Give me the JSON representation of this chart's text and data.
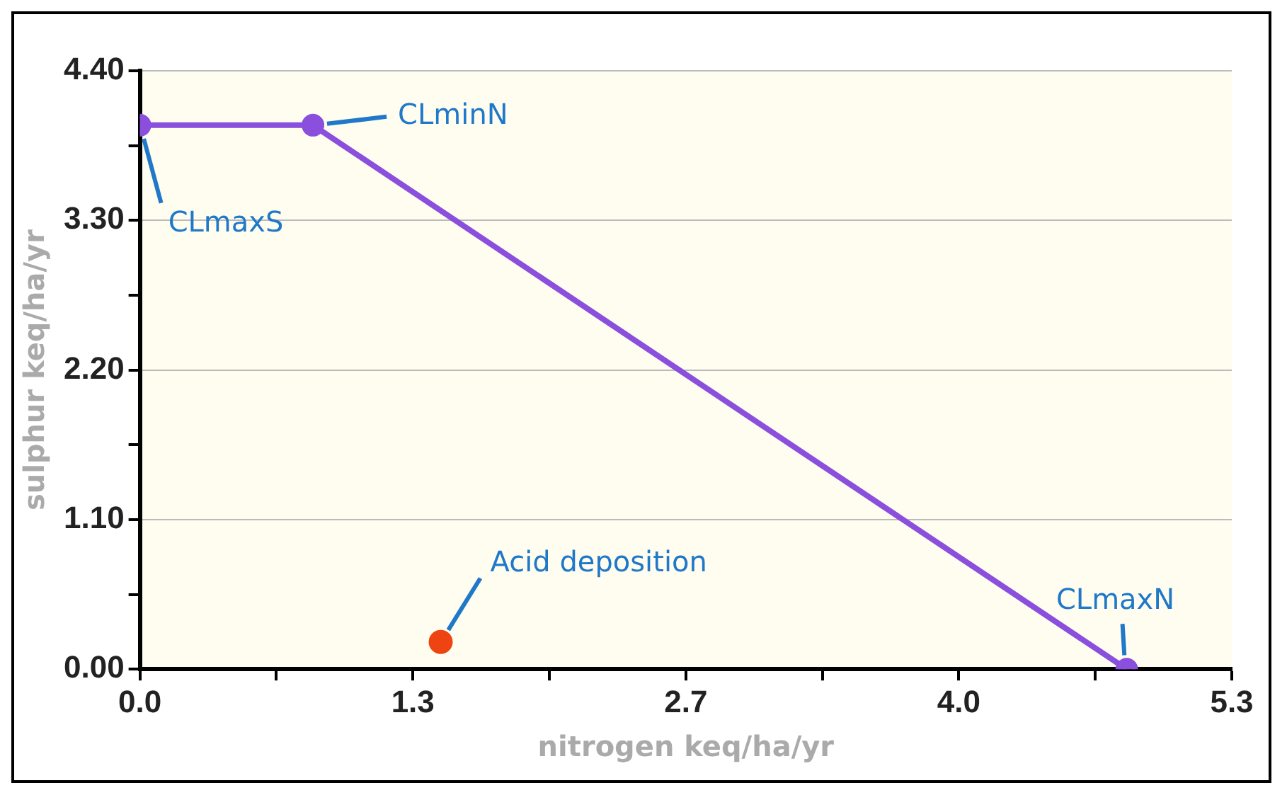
{
  "chart_data": {
    "type": "line",
    "xlabel": "nitrogen keq/ha/yr",
    "ylabel": "sulphur keq/ha/yr",
    "series": [
      {
        "color": "#8a4fdc",
        "x": [
          0,
          0.84,
          4.79
        ],
        "values": [
          4.0,
          4.0,
          0
        ]
      },
      {
        "type": "scatter",
        "color": "#ee4411",
        "x": [
          1.46
        ],
        "values": [
          0.2
        ]
      }
    ],
    "xlim": [
      0,
      5.3
    ],
    "xticks": [
      {
        "value": 0,
        "label": "0.0"
      },
      {
        "value": 0.6625,
        "label": null
      },
      {
        "value": 1.325,
        "label": "1.3"
      },
      {
        "value": 1.9875,
        "label": null
      },
      {
        "value": 2.65,
        "label": "2.7"
      },
      {
        "value": 3.3125,
        "label": null
      },
      {
        "value": 3.975,
        "label": "4.0"
      },
      {
        "value": 4.6375,
        "label": null
      },
      {
        "value": 5.3,
        "label": "5.3"
      }
    ],
    "ylim": [
      0,
      4.4
    ],
    "yticks": [
      {
        "value": 0,
        "label": "0.00"
      },
      {
        "value": 0.55,
        "label": null
      },
      {
        "value": 1.1,
        "label": "1.10"
      },
      {
        "value": 1.65,
        "label": null
      },
      {
        "value": 2.2,
        "label": "2.20"
      },
      {
        "value": 2.75,
        "label": null
      },
      {
        "value": 3.3,
        "label": "3.30"
      },
      {
        "value": 3.85,
        "label": null
      },
      {
        "value": 4.4,
        "label": "4.40"
      }
    ],
    "annotations": [
      {
        "text": "CLmaxS",
        "x": 0,
        "y": 4.0
      },
      {
        "text": "CLminN",
        "x": 0.84,
        "y": 4.0
      },
      {
        "text": "CLmaxN",
        "x": 4.79,
        "y": 0
      },
      {
        "text": "Acid deposition",
        "x": 1.46,
        "y": 0.2
      }
    ],
    "grid": "y",
    "legend": false,
    "marker": "circle",
    "line_style": "solid"
  }
}
